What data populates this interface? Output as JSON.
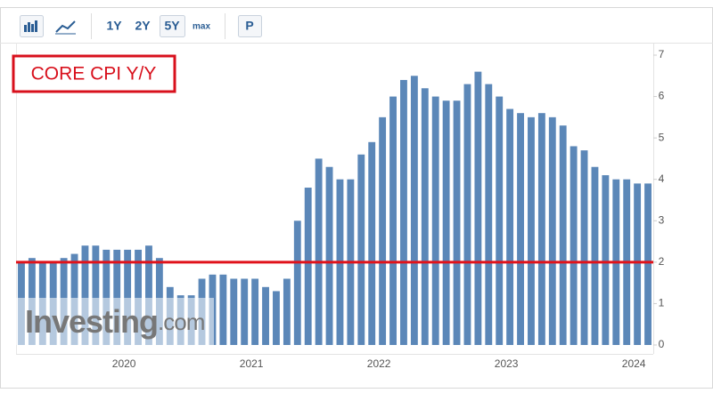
{
  "toolbar": {
    "buttons": [
      "1Y",
      "2Y",
      "5Y",
      "max",
      "P"
    ]
  },
  "chart_data": {
    "type": "bar",
    "title": "CORE CPI Y/Y",
    "categories": [
      null,
      null,
      null,
      null,
      null,
      null,
      null,
      null,
      null,
      null,
      "2020",
      null,
      null,
      null,
      null,
      null,
      null,
      null,
      null,
      null,
      null,
      null,
      "2021",
      null,
      null,
      null,
      null,
      null,
      null,
      null,
      null,
      null,
      null,
      null,
      "2022",
      null,
      null,
      null,
      null,
      null,
      null,
      null,
      null,
      null,
      null,
      null,
      "2023",
      null,
      null,
      null,
      null,
      null,
      null,
      null,
      null,
      null,
      null,
      null,
      "2024",
      null
    ],
    "values": [
      2.0,
      2.1,
      2.0,
      2.0,
      2.1,
      2.2,
      2.4,
      2.4,
      2.3,
      2.3,
      2.3,
      2.3,
      2.4,
      2.1,
      1.4,
      1.2,
      1.2,
      1.6,
      1.7,
      1.7,
      1.6,
      1.6,
      1.6,
      1.4,
      1.3,
      1.6,
      3.0,
      3.8,
      4.5,
      4.3,
      4.0,
      4.0,
      4.6,
      4.9,
      5.5,
      6.0,
      6.4,
      6.5,
      6.2,
      6.0,
      5.9,
      5.9,
      6.3,
      6.6,
      6.3,
      6.0,
      5.7,
      5.6,
      5.5,
      5.6,
      5.5,
      5.3,
      4.8,
      4.7,
      4.3,
      4.1,
      4.0,
      4.0,
      3.9,
      3.9
    ],
    "color": "#5b87b8",
    "ylim": [
      0,
      7
    ],
    "yticks": [
      0,
      1,
      2,
      3,
      4,
      5,
      6,
      7
    ],
    "reference_line": {
      "value": 2,
      "color": "#e0121a"
    },
    "watermark": {
      "name": "Investing",
      "suffix": ".com"
    }
  }
}
